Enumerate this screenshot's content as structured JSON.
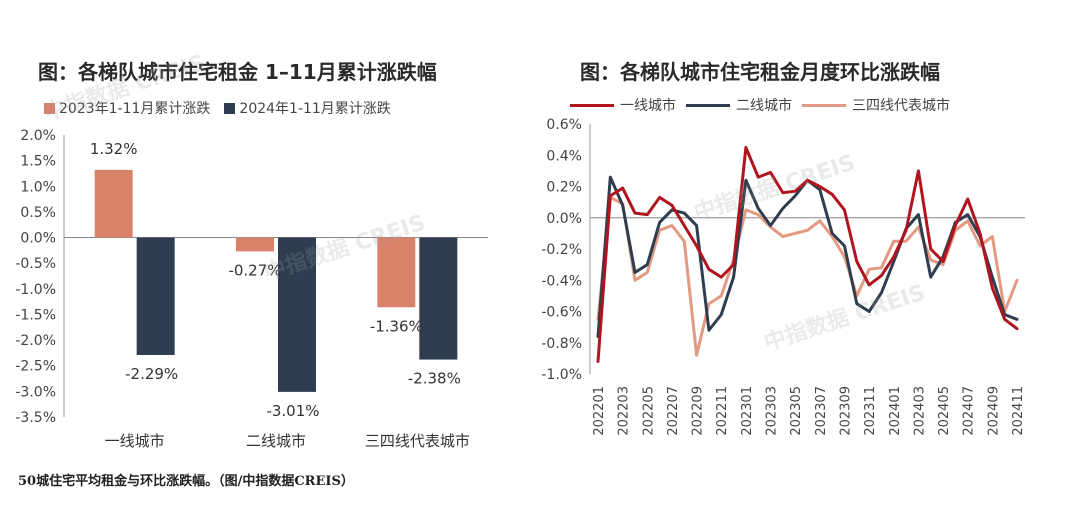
{
  "titles": {
    "left": "图：各梯队城市住宅租金 1–11月累计涨跌幅",
    "right": "图：各梯队城市住宅租金月度环比涨跌幅"
  },
  "caption": "50城住宅平均租金与环比涨跌幅。（图/中指数据CREIS）",
  "watermark": "中指数据 CREIS",
  "chart_data": [
    {
      "type": "bar",
      "categories": [
        "一线城市",
        "二线城市",
        "三四线代表城市"
      ],
      "series": [
        {
          "name": "2023年1-11月累计涨跌",
          "values": [
            1.32,
            -0.27,
            -1.36
          ],
          "labels": [
            "1.32%",
            "-0.27%",
            "-1.36%"
          ],
          "color": "#D9826A"
        },
        {
          "name": "2024年1-11月累计涨跌",
          "values": [
            -2.29,
            -3.01,
            -2.38
          ],
          "labels": [
            "-2.29%",
            "-3.01%",
            "-2.38%"
          ],
          "color": "#2E3D4F"
        }
      ],
      "ylim": [
        -3.5,
        2.0
      ],
      "yticks": [
        "2.0%",
        "1.5%",
        "1.0%",
        "0.5%",
        "0.0%",
        "-0.5%",
        "-1.0%",
        "-1.5%",
        "-2.0%",
        "-2.5%",
        "-3.0%",
        "-3.5%"
      ],
      "ytick_values": [
        2.0,
        1.5,
        1.0,
        0.5,
        0.0,
        -0.5,
        -1.0,
        -1.5,
        -2.0,
        -2.5,
        -3.0,
        -3.5
      ]
    },
    {
      "type": "line",
      "x": [
        "202201",
        "202202",
        "202203",
        "202204",
        "202205",
        "202206",
        "202207",
        "202208",
        "202209",
        "202210",
        "202211",
        "202212",
        "202301",
        "202302",
        "202303",
        "202304",
        "202305",
        "202306",
        "202307",
        "202308",
        "202309",
        "202310",
        "202311",
        "202312",
        "202401",
        "202402",
        "202403",
        "202404",
        "202405",
        "202406",
        "202407",
        "202408",
        "202409",
        "202410",
        "202411"
      ],
      "xtick_labels": [
        "202201",
        "202203",
        "202205",
        "202207",
        "202209",
        "202211",
        "202301",
        "202303",
        "202305",
        "202307",
        "202309",
        "202311",
        "202401",
        "202403",
        "202405",
        "202407",
        "202409",
        "202411"
      ],
      "ylim": [
        -1.0,
        0.6
      ],
      "yticks": [
        "0.6%",
        "0.4%",
        "0.2%",
        "0.0%",
        "-0.2%",
        "-0.4%",
        "-0.6%",
        "-0.8%",
        "-1.0%"
      ],
      "ytick_values": [
        0.6,
        0.4,
        0.2,
        0.0,
        -0.2,
        -0.4,
        -0.6,
        -0.8,
        -1.0
      ],
      "series": [
        {
          "name": "一线城市",
          "color": "#B0151F",
          "values": [
            -0.92,
            0.14,
            0.19,
            0.03,
            0.02,
            0.13,
            0.08,
            -0.05,
            -0.18,
            -0.33,
            -0.38,
            -0.3,
            0.45,
            0.26,
            0.29,
            0.16,
            0.17,
            0.24,
            0.2,
            0.15,
            0.05,
            -0.28,
            -0.43,
            -0.37,
            -0.25,
            -0.08,
            0.3,
            -0.2,
            -0.28,
            -0.05,
            0.12,
            -0.1,
            -0.45,
            -0.65,
            -0.71
          ]
        },
        {
          "name": "二线城市",
          "color": "#2E3D4F",
          "values": [
            -0.76,
            0.26,
            0.08,
            -0.35,
            -0.3,
            -0.03,
            0.05,
            0.03,
            -0.05,
            -0.72,
            -0.62,
            -0.38,
            0.24,
            0.06,
            -0.05,
            0.06,
            0.14,
            0.24,
            0.18,
            -0.1,
            -0.18,
            -0.55,
            -0.6,
            -0.48,
            -0.28,
            -0.07,
            0.02,
            -0.38,
            -0.25,
            -0.03,
            0.02,
            -0.12,
            -0.38,
            -0.62,
            -0.65
          ]
        },
        {
          "name": "三四线代表城市",
          "color": "#E39A82",
          "values": [
            -0.65,
            0.13,
            0.09,
            -0.4,
            -0.35,
            -0.08,
            -0.05,
            -0.15,
            -0.88,
            -0.55,
            -0.5,
            -0.27,
            0.05,
            0.02,
            -0.06,
            -0.12,
            -0.1,
            -0.08,
            -0.02,
            -0.12,
            -0.25,
            -0.5,
            -0.33,
            -0.32,
            -0.15,
            -0.15,
            -0.06,
            -0.27,
            -0.3,
            -0.08,
            -0.02,
            -0.18,
            -0.12,
            -0.6,
            -0.4
          ]
        }
      ]
    }
  ]
}
